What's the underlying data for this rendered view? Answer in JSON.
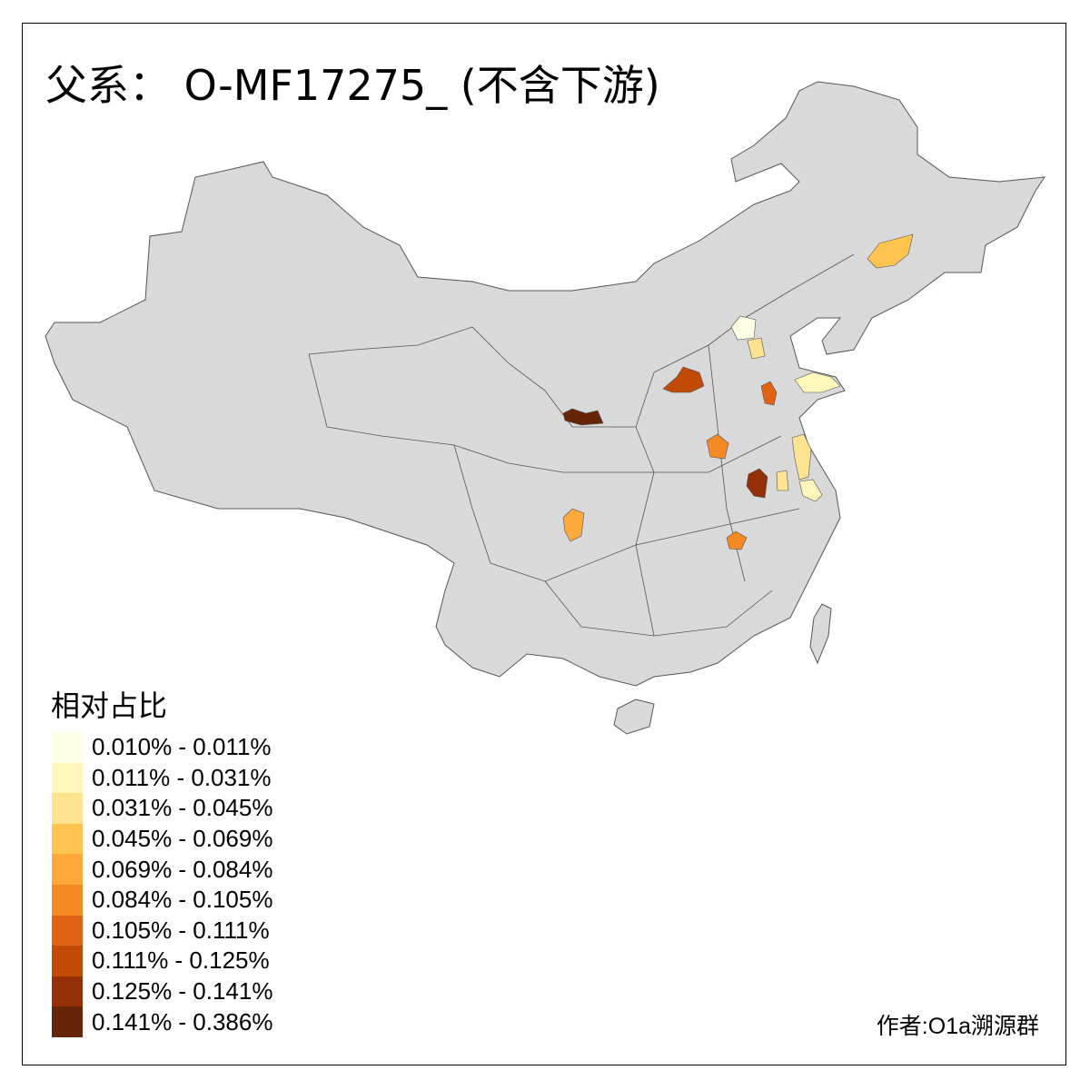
{
  "title": "父系： O-MF17275_ (不含下游)",
  "legend": {
    "title": "相对占比",
    "items": [
      {
        "label": "0.010% - 0.011%",
        "color": "#ffffe5"
      },
      {
        "label": "0.011% - 0.031%",
        "color": "#fff7bc"
      },
      {
        "label": "0.031% - 0.045%",
        "color": "#fee391"
      },
      {
        "label": "0.045% - 0.069%",
        "color": "#fec44f"
      },
      {
        "label": "0.069% - 0.084%",
        "color": "#fea93a"
      },
      {
        "label": "0.084% - 0.105%",
        "color": "#f58a24"
      },
      {
        "label": "0.105% - 0.111%",
        "color": "#e06212"
      },
      {
        "label": "0.111% - 0.125%",
        "color": "#c24a07"
      },
      {
        "label": "0.125% - 0.141%",
        "color": "#933008"
      },
      {
        "label": "0.141% - 0.386%",
        "color": "#662506"
      }
    ]
  },
  "map": {
    "base_color": "#d9d9d9",
    "border_color": "#555555"
  },
  "credit": "作者:O1a溯源群"
}
